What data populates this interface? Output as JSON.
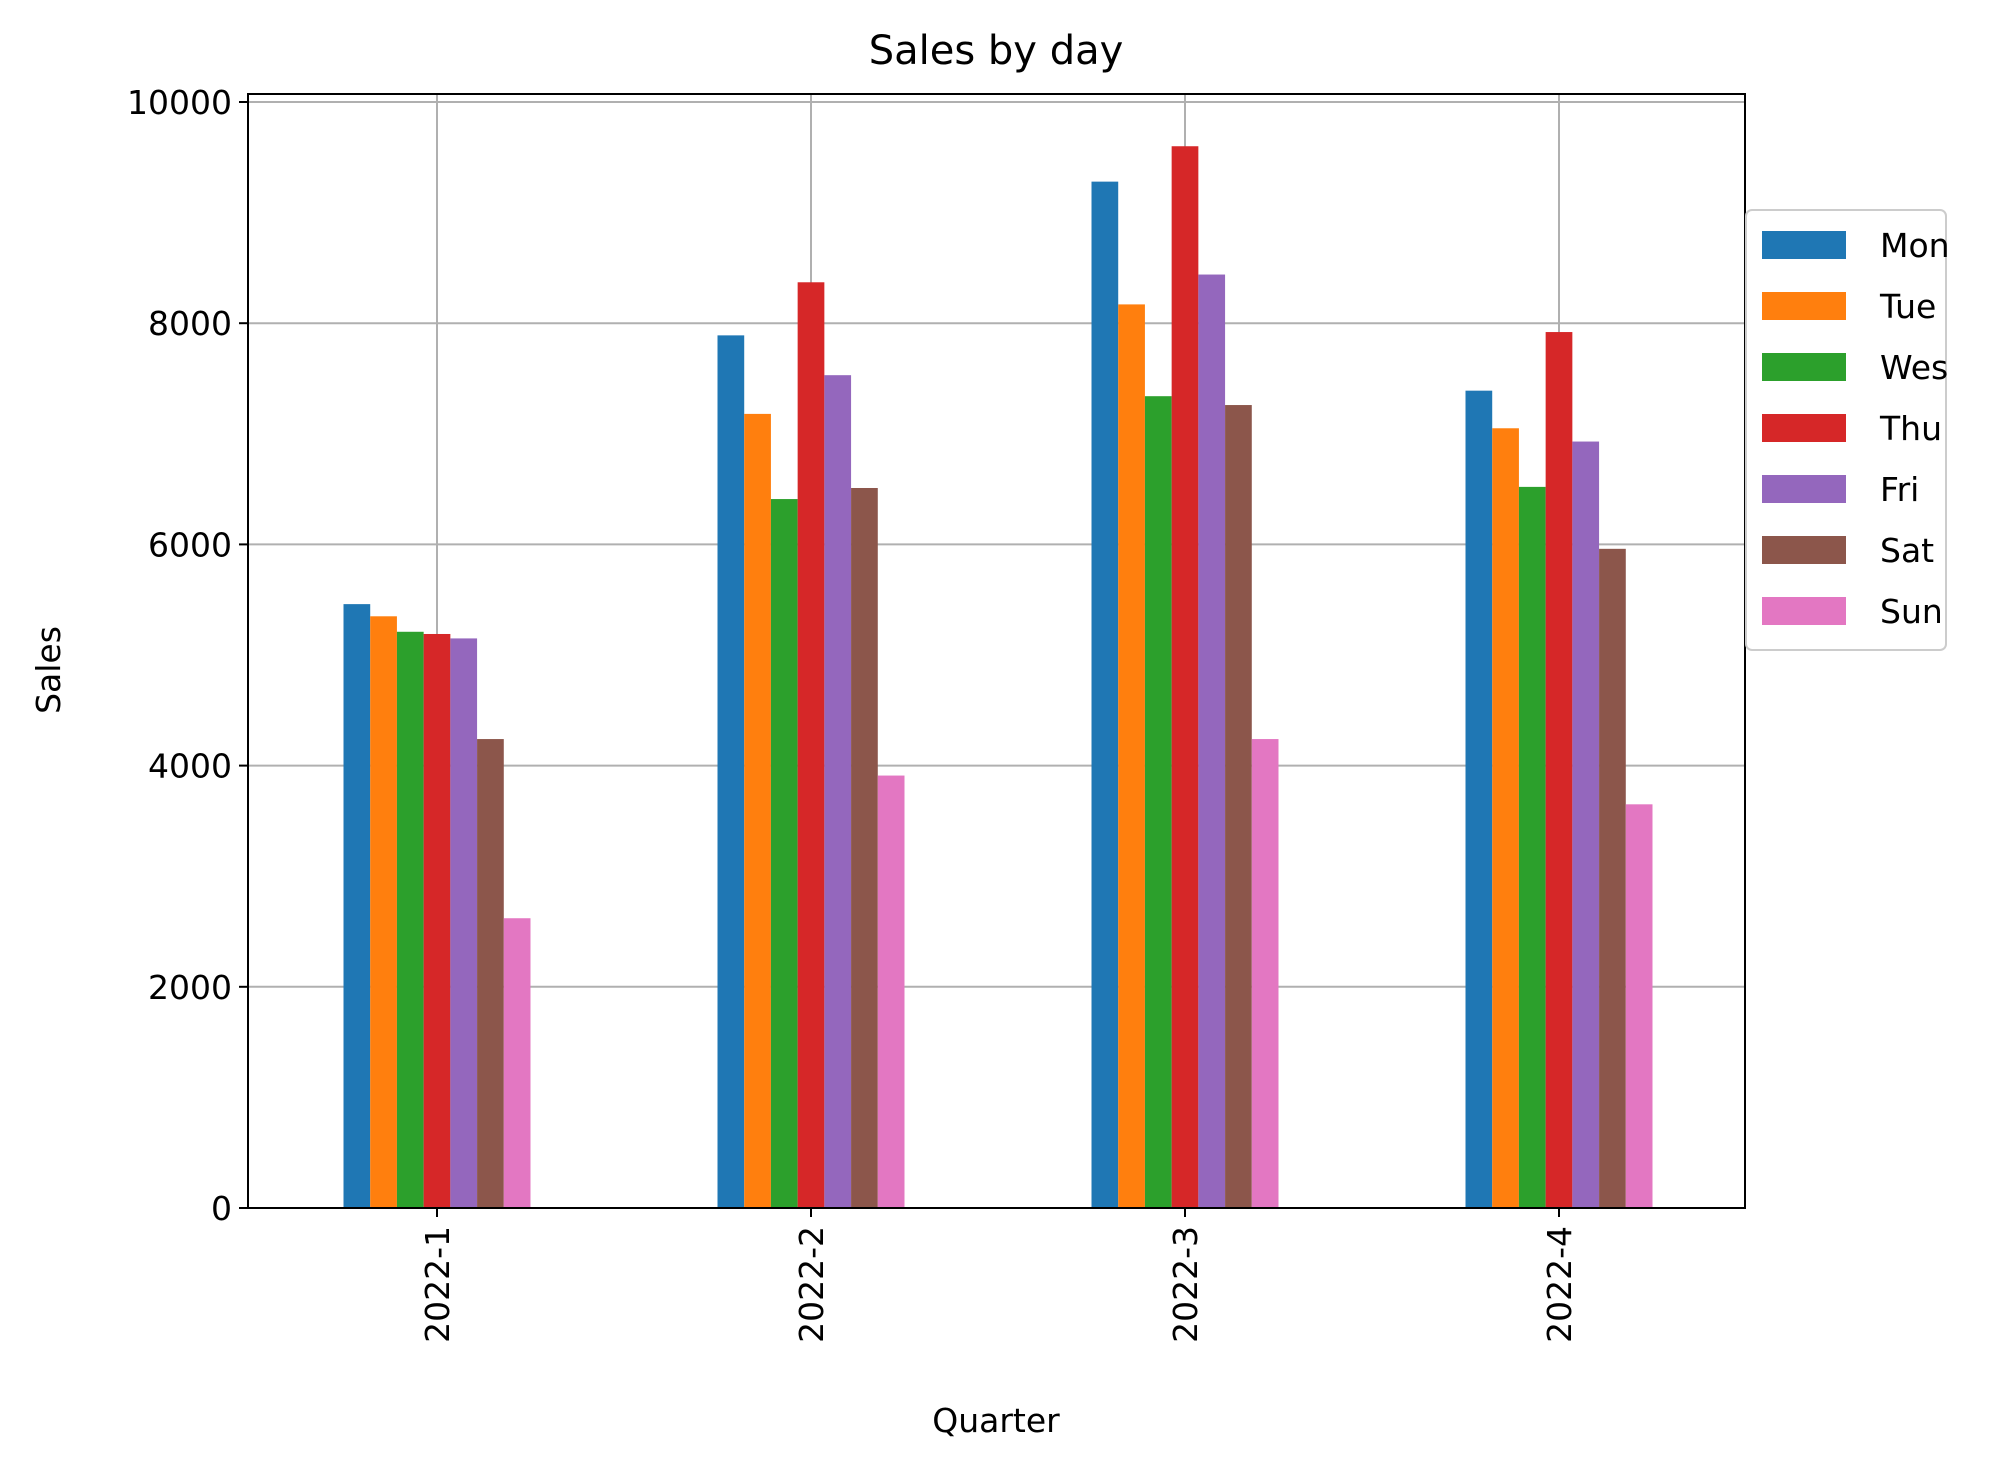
{
  "chart_data": {
    "type": "bar",
    "title": "Sales by day",
    "xlabel": "Quarter",
    "ylabel": "Sales",
    "categories": [
      "2022-1",
      "2022-2",
      "2022-3",
      "2022-4"
    ],
    "ylim": [
      0,
      10000
    ],
    "yticks": [
      0,
      2000,
      4000,
      6000,
      8000,
      10000
    ],
    "grid": true,
    "legend_position": "right",
    "series": [
      {
        "name": "Mon",
        "color": "#1f77b4",
        "values": [
          5460,
          7890,
          9280,
          7390
        ]
      },
      {
        "name": "Tue",
        "color": "#ff7f0e",
        "values": [
          5350,
          7180,
          8170,
          7050
        ]
      },
      {
        "name": "Wes",
        "color": "#2ca02c",
        "values": [
          5210,
          6410,
          7340,
          6520
        ]
      },
      {
        "name": "Thu",
        "color": "#d62728",
        "values": [
          5190,
          8370,
          9600,
          7920
        ]
      },
      {
        "name": "Fri",
        "color": "#9467bd",
        "values": [
          5150,
          7530,
          8440,
          6930
        ]
      },
      {
        "name": "Sat",
        "color": "#8c564b",
        "values": [
          4240,
          6510,
          7260,
          5960
        ]
      },
      {
        "name": "Sun",
        "color": "#e377c2",
        "values": [
          2620,
          3910,
          4240,
          3650
        ]
      }
    ]
  }
}
